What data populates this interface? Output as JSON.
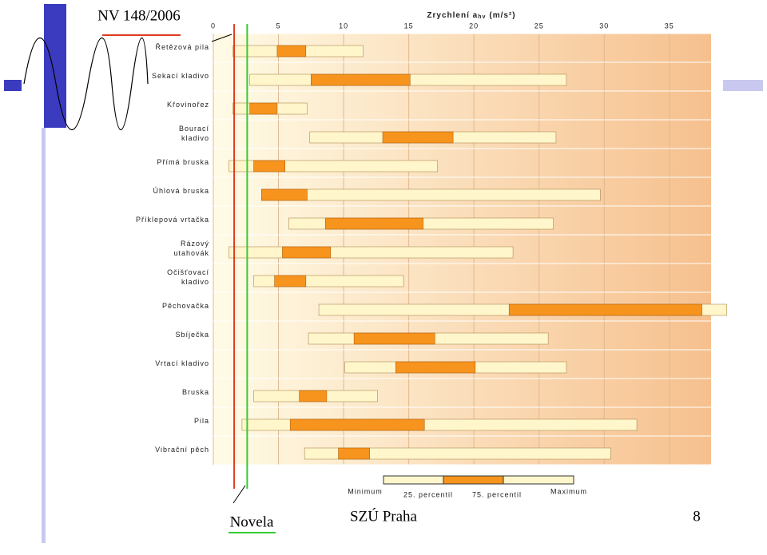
{
  "chart_data": {
    "type": "range",
    "x_label": "Zrychlení a",
    "x_label_sub": "hv",
    "x_label_unit": "(m/s²)",
    "xlim": [
      0,
      38.2
    ],
    "xticks": [
      0,
      5,
      10,
      15,
      20,
      25,
      30,
      35
    ],
    "grid": true,
    "categories": [
      [
        "Řetězová pila"
      ],
      [
        "Sekací kladivo"
      ],
      [
        "Křovinořez"
      ],
      [
        "Bourací",
        "kladivo"
      ],
      [
        "Přímá bruska"
      ],
      [
        "Úhlová bruska"
      ],
      [
        "Příklepová vrtačka"
      ],
      [
        "Rázový",
        "utahovák"
      ],
      [
        "Očišťovací",
        "kladivo"
      ],
      [
        "Pěchovačka"
      ],
      [
        "Sbíječka"
      ],
      [
        "Vrtací kladivo"
      ],
      [
        "Bruska"
      ],
      [
        "Pila"
      ],
      [
        "Vibrační pěch"
      ]
    ],
    "series": [
      {
        "name": "Minimum",
        "values": [
          1.5,
          2.8,
          1.5,
          7.4,
          1.2,
          3.7,
          5.8,
          1.2,
          3.1,
          8.1,
          7.3,
          10.1,
          3.1,
          2.2,
          7.0
        ]
      },
      {
        "name": "25. percentil",
        "values": [
          4.9,
          7.5,
          2.8,
          13.0,
          3.1,
          3.7,
          8.6,
          5.3,
          4.7,
          22.7,
          10.8,
          14.0,
          6.6,
          5.9,
          9.6
        ]
      },
      {
        "name": "75. percentil",
        "values": [
          7.1,
          15.1,
          4.9,
          18.4,
          5.5,
          7.2,
          16.1,
          9.0,
          7.1,
          37.5,
          17.0,
          20.1,
          8.7,
          16.2,
          12.0
        ]
      },
      {
        "name": "Maximum",
        "values": [
          11.5,
          27.1,
          7.2,
          26.3,
          17.2,
          29.7,
          26.1,
          23.0,
          14.6,
          39.4,
          25.7,
          27.1,
          12.6,
          32.5,
          30.5
        ]
      }
    ],
    "outer_color": "#fff6cc",
    "inner_color": "#f7941d",
    "reference_lines": [
      {
        "label": "NV 148/2006",
        "value": 1.6,
        "color": "#e03a1e"
      },
      {
        "label": "Novela",
        "value": 2.6,
        "color": "#33cc33"
      }
    ]
  },
  "footer": {
    "center": "SZÚ Praha",
    "page": "8"
  }
}
